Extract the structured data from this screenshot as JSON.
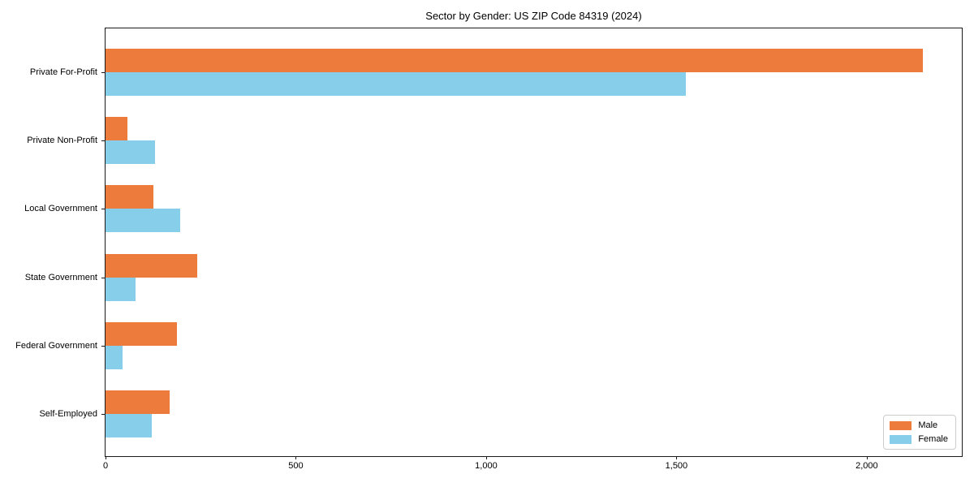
{
  "title": "Sector by Gender: US ZIP Code 84319 (2024)",
  "chart_data": {
    "type": "bar",
    "orientation": "horizontal",
    "title": "Sector by Gender: US ZIP Code 84319 (2024)",
    "categories": [
      "Private For-Profit",
      "Private Non-Profit",
      "Local Government",
      "State Government",
      "Federal Government",
      "Self-Employed"
    ],
    "series": [
      {
        "name": "Male",
        "color": "#ec7b3c",
        "values": [
          2147,
          58,
          126,
          242,
          187,
          169
        ]
      },
      {
        "name": "Female",
        "color": "#87ceeb",
        "values": [
          1525,
          130,
          196,
          79,
          45,
          122
        ]
      }
    ],
    "xlabel": "",
    "ylabel": "",
    "xlim": [
      0,
      2254
    ],
    "xticks": [
      0,
      500,
      1000,
      1500,
      2000
    ],
    "xtick_labels": [
      "0",
      "500",
      "1,000",
      "1,500",
      "2,000"
    ],
    "grid": false,
    "legend": {
      "position": "lower right",
      "entries": [
        "Male",
        "Female"
      ]
    }
  },
  "colors": {
    "male": "#ec7b3c",
    "female": "#87ceeb",
    "spine": "#1a1a1a",
    "background": "#ffffff",
    "legend_border": "#cccccc"
  }
}
